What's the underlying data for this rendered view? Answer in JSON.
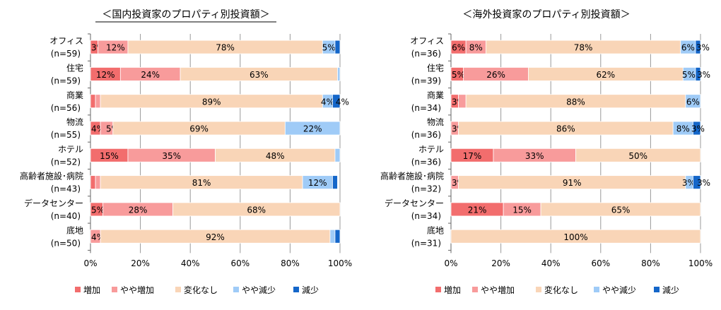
{
  "legend": [
    "増加",
    "やや増加",
    "変化なし",
    "やや減少",
    "減少"
  ],
  "colors": [
    "#f26d6d",
    "#f89b9b",
    "#f9d5b7",
    "#9fcbf7",
    "#1466c9"
  ],
  "chart_data": [
    {
      "type": "bar",
      "orientation": "horizontal",
      "stacked": true,
      "title": "＜国内投資家のプロパティ別投資額＞",
      "title_underlined": true,
      "xlim": [
        0,
        100
      ],
      "xticks": [
        "0%",
        "20%",
        "40%",
        "60%",
        "80%",
        "100%"
      ],
      "grid": true,
      "legend_position": "bottom",
      "categories": [
        "オフィス",
        "住宅",
        "商業",
        "物流",
        "ホテル",
        "高齢者施設･病院",
        "データセンター",
        "底地"
      ],
      "n_labels": [
        "(n=59)",
        "(n=59)",
        "(n=56)",
        "(n=55)",
        "(n=52)",
        "(n=43)",
        "(n=40)",
        "(n=50)"
      ],
      "series": [
        {
          "name": "増加",
          "values": [
            3,
            12,
            2,
            4,
            15,
            2,
            5,
            0
          ]
        },
        {
          "name": "やや増加",
          "values": [
            12,
            24,
            2,
            5,
            35,
            2,
            28,
            4
          ]
        },
        {
          "name": "変化なし",
          "values": [
            78,
            63,
            89,
            69,
            48,
            81,
            68,
            92
          ]
        },
        {
          "name": "やや減少",
          "values": [
            5,
            2,
            4,
            22,
            2,
            12,
            0,
            2
          ]
        },
        {
          "name": "減少",
          "values": [
            2,
            0,
            4,
            0,
            0,
            2,
            0,
            2
          ]
        }
      ]
    },
    {
      "type": "bar",
      "orientation": "horizontal",
      "stacked": true,
      "title": "＜海外投資家のプロパティ別投資額＞",
      "title_underlined": false,
      "xlim": [
        0,
        100
      ],
      "xticks": [
        "0%",
        "20%",
        "40%",
        "60%",
        "80%",
        "100%"
      ],
      "grid": true,
      "legend_position": "bottom",
      "categories": [
        "オフィス",
        "住宅",
        "商業",
        "物流",
        "ホテル",
        "高齢者施設･病院",
        "データセンター",
        "底地"
      ],
      "n_labels": [
        "(n=36)",
        "(n=39)",
        "(n=34)",
        "(n=36)",
        "(n=36)",
        "(n=32)",
        "(n=34)",
        "(n=31)"
      ],
      "series": [
        {
          "name": "増加",
          "values": [
            6,
            5,
            3,
            0,
            17,
            0,
            21,
            0
          ]
        },
        {
          "name": "やや増加",
          "values": [
            8,
            26,
            3,
            3,
            33,
            3,
            15,
            0
          ]
        },
        {
          "name": "変化なし",
          "values": [
            78,
            62,
            88,
            86,
            50,
            91,
            65,
            100
          ]
        },
        {
          "name": "やや減少",
          "values": [
            6,
            5,
            6,
            8,
            0,
            3,
            0,
            0
          ]
        },
        {
          "name": "減少",
          "values": [
            3,
            3,
            0,
            3,
            0,
            3,
            0,
            0
          ]
        }
      ]
    }
  ]
}
